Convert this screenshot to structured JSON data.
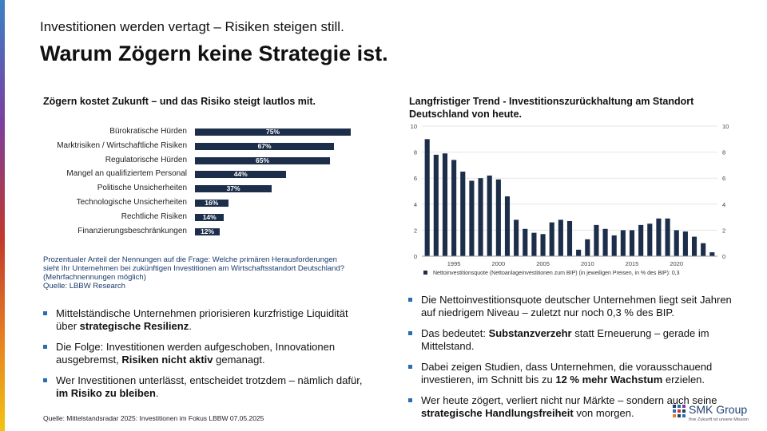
{
  "header": {
    "kicker": "Investitionen werden vertagt – Risiken steigen still.",
    "title": "Warum Zögern keine Strategie ist."
  },
  "left": {
    "heading": "Zögern kostet Zukunft – und das Risiko steigt lautlos mit.",
    "note_lines": [
      "Prozentualer Anteil der Nennungen auf die Frage: Welche primären Herausforderungen",
      "sieht Ihr Unternehmen bei zukünftigen Investitionen am Wirtschaftsstandort Deutschland?",
      "(Mehrfachnennungen möglich)",
      "Quelle: LBBW Research"
    ],
    "bullets": [
      {
        "text": "Mittelständische Unternehmen priorisieren kurzfristige Liquidität über ",
        "bold": "strategische Resilienz",
        "after": "."
      },
      {
        "text": "Die Folge: Investitionen werden aufgeschoben, Innovationen ausgebremst, ",
        "bold": "Risiken nicht aktiv",
        "after": " gemanagt."
      },
      {
        "text": "Wer Investitionen unterlässt, entscheidet trotzdem – nämlich dafür, ",
        "bold": "im Risiko zu bleiben",
        "after": "."
      }
    ]
  },
  "right": {
    "heading": "Langfristiger Trend - Investitionszurückhaltung am Standort Deutschland von heute.",
    "bullets": [
      {
        "text": "Die Nettoinvestitionsquote deutscher Unternehmen liegt seit Jahren auf niedrigem Niveau – zuletzt nur noch 0,3 % des BIP.",
        "bold": "",
        "after": ""
      },
      {
        "text": "Das bedeutet: ",
        "bold": "Substanzverzehr",
        "after": " statt Erneuerung – gerade im Mittelstand."
      },
      {
        "text": "Dabei zeigen Studien, dass Unternehmen, die vorausschauend investieren, im Schnitt bis zu ",
        "bold": "12 % mehr Wachstum",
        "after": " erzielen."
      },
      {
        "text": "Wer heute zögert, verliert nicht nur Märkte – sondern auch seine ",
        "bold": "strategische Handlungsfreiheit",
        "after": " von morgen."
      }
    ]
  },
  "footer": {
    "source": "Quelle: Mittelstandsradar 2025: Investitionen im Fokus LBBW 07.05.2025",
    "logo_name": "SMK Group",
    "logo_tagline": "Ihre Zukunft ist unsere Mission"
  },
  "colors": {
    "bar": "#1c2e4a",
    "accent": "#2c6cb0",
    "note_text": "#1a3a6b"
  },
  "chart_data": [
    {
      "type": "bar",
      "orientation": "horizontal",
      "categories": [
        "Bürokratische Hürden",
        "Marktrisiken / Wirtschaftliche Risiken",
        "Regulatorische Hürden",
        "Mangel an qualifiziertem Personal",
        "Politische Unsicherheiten",
        "Technologische Unsicherheiten",
        "Rechtliche Risiken",
        "Finanzierungsbeschränkungen"
      ],
      "values": [
        75,
        67,
        65,
        44,
        37,
        16,
        14,
        12
      ],
      "value_labels": [
        "75%",
        "67%",
        "65%",
        "44%",
        "37%",
        "16%",
        "14%",
        "12%"
      ],
      "xlim": [
        0,
        100
      ]
    },
    {
      "type": "bar",
      "x": [
        1992,
        1993,
        1994,
        1995,
        1996,
        1997,
        1998,
        1999,
        2000,
        2001,
        2002,
        2003,
        2004,
        2005,
        2006,
        2007,
        2008,
        2009,
        2010,
        2011,
        2012,
        2013,
        2014,
        2015,
        2016,
        2017,
        2018,
        2019,
        2020,
        2021,
        2022,
        2023,
        2024
      ],
      "values": [
        9.0,
        7.8,
        7.9,
        7.4,
        6.5,
        5.8,
        6.0,
        6.2,
        5.9,
        4.6,
        2.8,
        2.1,
        1.8,
        1.7,
        2.6,
        2.8,
        2.7,
        0.5,
        1.3,
        2.4,
        2.1,
        1.6,
        2.0,
        2.0,
        2.4,
        2.5,
        2.9,
        2.9,
        2.0,
        1.9,
        1.5,
        1.0,
        0.3
      ],
      "x_ticks": [
        1995,
        2000,
        2005,
        2010,
        2015,
        2020
      ],
      "y_ticks": [
        0,
        2,
        4,
        6,
        8,
        10
      ],
      "ylim": [
        0,
        10
      ],
      "legend": "Nettoinvestitionsquote (Nettoanlageinvestitionen zum BIP) (in jeweiligen Preisen, in % des BIP): 0,3"
    }
  ]
}
